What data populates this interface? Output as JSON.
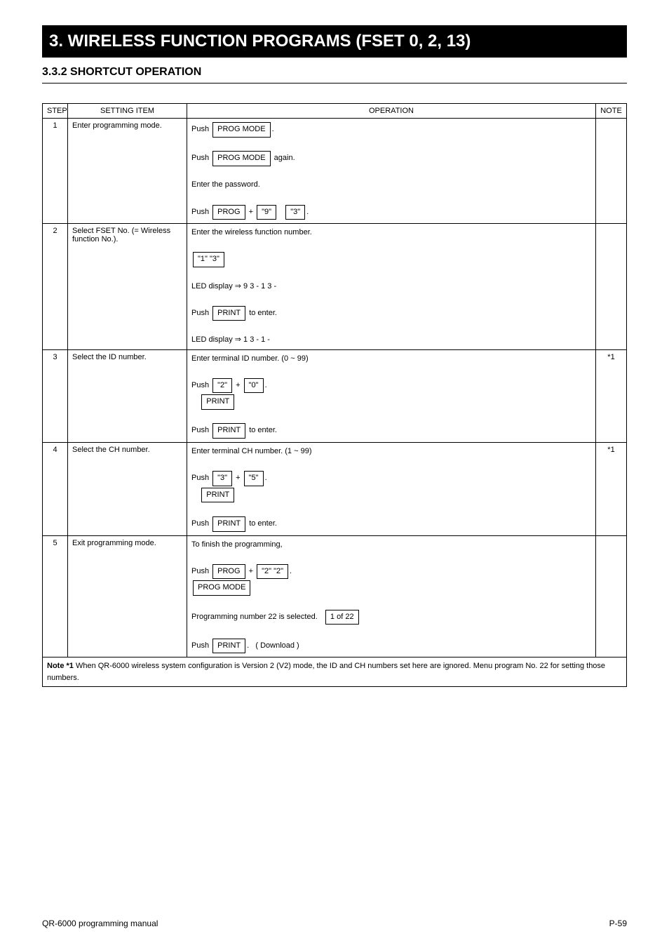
{
  "banner_title": "3.  WIRELESS FUNCTION PROGRAMS (FSET 0, 2, 13)",
  "section_heading": "3.3.2  SHORTCUT OPERATION",
  "columns": {
    "step": "STEP",
    "setting_item": "SETTING ITEM",
    "operation": "OPERATION",
    "note": "NOTE"
  },
  "steps": [
    {
      "n": "1",
      "item_html": "Enter programming mode.",
      "op_html": "Push <span class='kbox'>PROG MODE</span>.<br><br>Push <span class='kbox'>PROG MODE</span> again.<br><br>Enter the password.<br><br>Push <span class='kbox'>PROG</span> + <span class='kbox'>\"9\"</span> &nbsp; <span class='kbox'>\"3\"</span>.<hr style='border:none'>",
      "note": ""
    },
    {
      "n": "2",
      "item_html": "Select FSET No. (= Wireless function No.).",
      "op_html": "Enter the wireless function number.<br><br><span class='kbox'>\"1\" \"3\"</span><br><br>LED display &rArr; 9 3 - 1 3 -<br><br>Push <span class='kbox'>PRINT</span> to enter.<br><br>LED display &rArr; 1 3 - 1 -",
      "note": ""
    },
    {
      "n": "3",
      "item_html": "Select the ID number.",
      "op_html": "Enter terminal ID number. (0 ~ 99)<br><br>Push <span class='kbox'>\"2\"</span> + <span class='kbox'>\"0\"</span>.<br>&nbsp;&nbsp;&nbsp;&nbsp;<span class='kbox'>PRINT</span><br><br>Push <span class='kbox'>PRINT</span> to enter.",
      "note": "*1"
    },
    {
      "n": "4",
      "item_html": "Select the CH number.",
      "op_html": "Enter terminal CH number. (1 ~ 99)<br><br>Push <span class='kbox'>\"3\"</span> + <span class='kbox'>\"5\"</span>.<br>&nbsp;&nbsp;&nbsp;&nbsp;<span class='kbox'>PRINT</span><br><br>Push <span class='kbox'>PRINT</span> to enter.",
      "note": "*1"
    },
    {
      "n": "5",
      "item_html": "Exit programming mode.",
      "op_html": "To finish the programming,<br><br>Push <span class='kbox'>PROG</span> + <span class='kbox'>\"2\" \"2\"</span>.<br><span class='kbox'>PROG MODE</span><br><br>Programming number 22 is selected. &nbsp; <span class='kbox'>1 of 22</span><br><br>Push <span class='kbox'>PRINT</span>. &nbsp; ( Download )",
      "note": ""
    }
  ],
  "note_block": "<b>Note *1</b> When QR-6000 wireless system configuration is Version 2 (V2) mode, the ID and CH numbers set here are ignored. Menu program No. 22 for setting those numbers.",
  "footer_left": "QR-6000 programming manual",
  "footer_right": "P-59"
}
